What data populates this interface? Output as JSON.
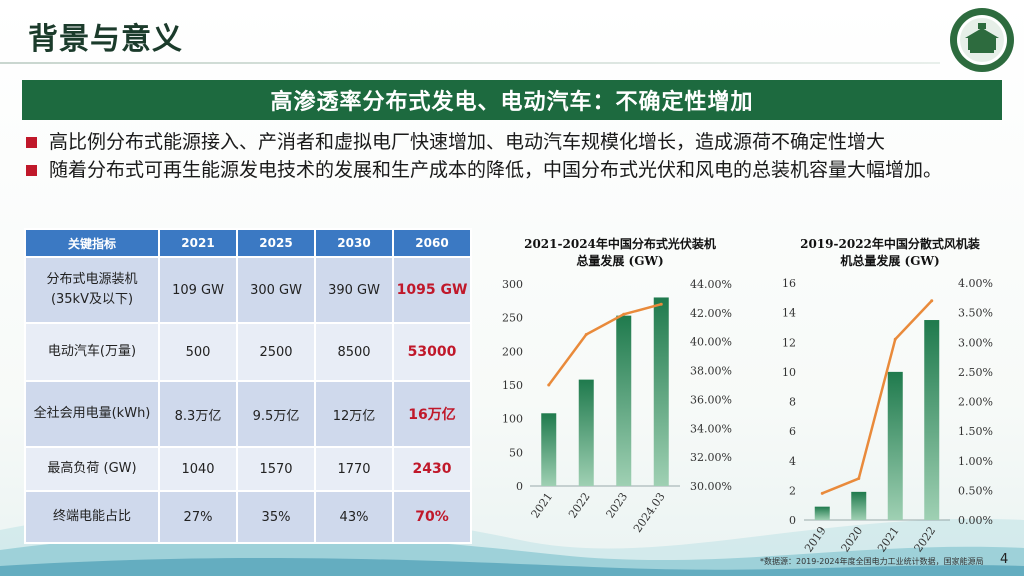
{
  "slide": {
    "title": "背景与意义",
    "banner": "高渗透率分布式发电、电动汽车：不确定性增加",
    "bullets": [
      "高比例分布式能源接入、产消者和虚拟电厂快速增加、电动汽车规模化增长，造成源荷不确定性增大",
      "随着分布式可再生能源发电技术的发展和生产成本的降低，中国分布式光伏和风电的总装机容量大幅增加。"
    ],
    "source": "*数据源：2019-2024年度全国电力工业统计数据，国家能源局",
    "page_number": "4",
    "accent_color": "#1d6a3f",
    "bullet_color": "#c0182a"
  },
  "table": {
    "headers": [
      "关键指标",
      "2021",
      "2025",
      "2030",
      "2060"
    ],
    "rows": [
      {
        "label": "分布式电源装机\n(35kV及以下)",
        "values": [
          "109 GW",
          "300 GW",
          "390 GW",
          "1095 GW"
        ]
      },
      {
        "label": "电动汽车(万量)",
        "values": [
          "500",
          "2500",
          "8500",
          "53000"
        ]
      },
      {
        "label": "全社会用电量(kWh)",
        "values": [
          "8.3万亿",
          "9.5万亿",
          "12万亿",
          "16万亿"
        ]
      },
      {
        "label": "最高负荷 (GW)",
        "values": [
          "1040",
          "1570",
          "1770",
          "2430"
        ]
      },
      {
        "label": "终端电能占比",
        "values": [
          "27%",
          "35%",
          "43%",
          "70%"
        ]
      }
    ]
  },
  "chart_data": [
    {
      "type": "bar",
      "title": "2021-2024年中国分布式光伏装机\n总量发展 (GW)",
      "categories": [
        "2021",
        "2022",
        "2023",
        "2024.03"
      ],
      "series": [
        {
          "kind": "bar",
          "values": [
            108,
            158,
            253,
            280
          ]
        },
        {
          "kind": "line",
          "axis": "right",
          "values": [
            0.37,
            0.405,
            0.419,
            0.426
          ]
        }
      ],
      "ylim": [
        0,
        300
      ],
      "yticks": [
        0,
        50,
        100,
        150,
        200,
        250,
        300
      ],
      "y2lim": [
        0.3,
        0.44
      ],
      "y2ticks": [
        "30.00%",
        "32.00%",
        "34.00%",
        "36.00%",
        "38.00%",
        "40.00%",
        "42.00%",
        "44.00%"
      ],
      "bar_color": "#1f7a4d",
      "line_color": "#e98a3b"
    },
    {
      "type": "bar",
      "title": "2019-2022年中国分散式风机装\n机总量发展 (GW)",
      "categories": [
        "2019",
        "2020",
        "2021",
        "2022"
      ],
      "series": [
        {
          "kind": "bar",
          "values": [
            0.9,
            1.9,
            10.0,
            13.5
          ]
        },
        {
          "kind": "line",
          "axis": "right",
          "values": [
            0.0045,
            0.007,
            0.0305,
            0.037
          ]
        }
      ],
      "ylim": [
        0,
        16
      ],
      "yticks": [
        0,
        2,
        4,
        6,
        8,
        10,
        12,
        14,
        16
      ],
      "y2lim": [
        0,
        0.04
      ],
      "y2ticks": [
        "0.00%",
        "0.50%",
        "1.00%",
        "1.50%",
        "2.00%",
        "2.50%",
        "3.00%",
        "3.50%",
        "4.00%"
      ],
      "bar_color": "#1f7a4d",
      "line_color": "#e98a3b"
    }
  ]
}
